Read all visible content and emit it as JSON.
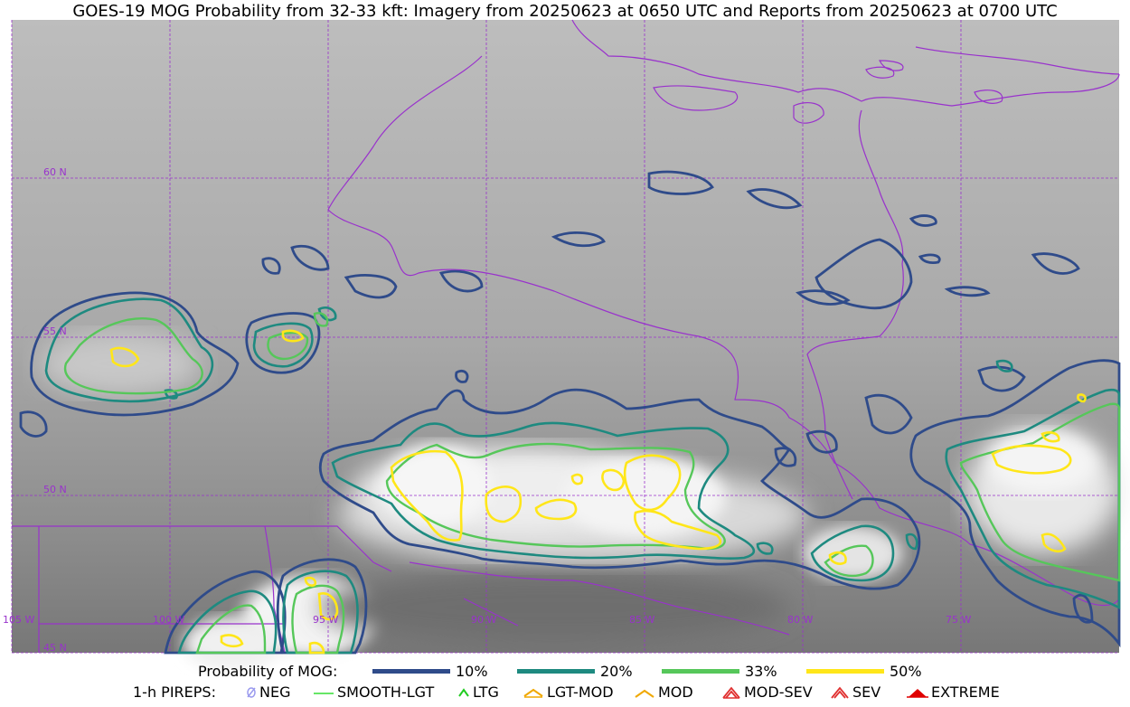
{
  "title": "GOES-19 MOG Probability from 32-33 kft: Imagery from 20250623 at 0650 UTC and Reports from 20250623 at 0700 UTC",
  "map": {
    "lat_labels": [
      "60 N",
      "55 N",
      "50 N",
      "45 N"
    ],
    "lon_labels": [
      "105 W",
      "100 W",
      "95 W",
      "90 W",
      "85 W",
      "80 W",
      "75 W"
    ],
    "colors": {
      "coast": "#9932cc",
      "contour_10": "#2f4b8a",
      "contour_20": "#1e8a80",
      "contour_33": "#56c75a",
      "contour_50": "#ffe619"
    }
  },
  "legend": {
    "probability": {
      "label": "Probability of MOG:",
      "items": [
        {
          "label": "10%",
          "color": "#2f4b8a"
        },
        {
          "label": "20%",
          "color": "#1e8a80"
        },
        {
          "label": "33%",
          "color": "#56c75a"
        },
        {
          "label": "50%",
          "color": "#ffe619"
        }
      ]
    },
    "pireps": {
      "label": "1-h PIREPS:",
      "items": [
        {
          "label": "NEG",
          "icon": "neg-icon",
          "color": "#9999ee"
        },
        {
          "label": "SMOOTH-LGT",
          "icon": "smooth-lgt-icon",
          "color": "#33dd33"
        },
        {
          "label": "LTG",
          "icon": "ltg-icon",
          "color": "#22cc22"
        },
        {
          "label": "LGT-MOD",
          "icon": "lgt-mod-icon",
          "color": "#f0a800"
        },
        {
          "label": "MOD",
          "icon": "mod-icon",
          "color": "#f0a800"
        },
        {
          "label": "MOD-SEV",
          "icon": "mod-sev-icon",
          "color": "#e03030"
        },
        {
          "label": "SEV",
          "icon": "sev-icon",
          "color": "#e03030"
        },
        {
          "label": "EXTREME",
          "icon": "extreme-icon",
          "color": "#e00000"
        }
      ]
    }
  }
}
